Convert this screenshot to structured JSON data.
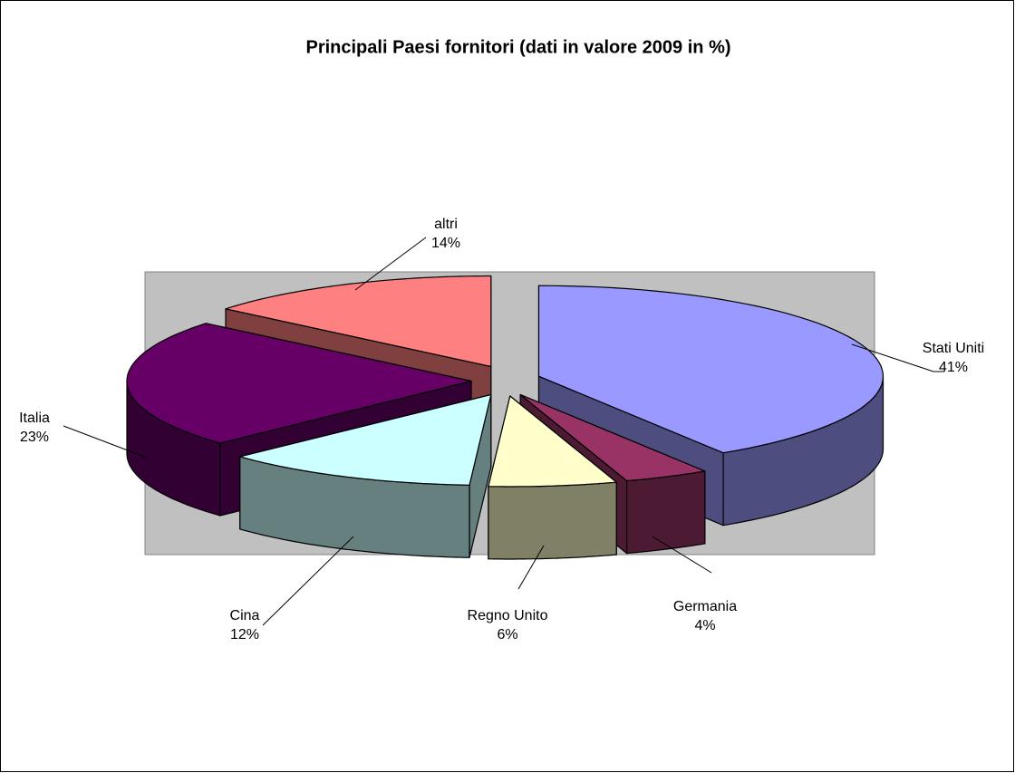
{
  "chart_data": {
    "type": "pie3d",
    "title": "Principali Paesi fornitori (dati in valore 2009 in %)",
    "categories": [
      "Stati Uniti",
      "Germania",
      "Regno Unito",
      "Cina",
      "Italia",
      "altri"
    ],
    "values": [
      41,
      4,
      6,
      12,
      23,
      14
    ],
    "value_labels": [
      "41%",
      "4%",
      "6%",
      "12%",
      "23%",
      "14%"
    ],
    "colors": [
      "#9999ff",
      "#993366",
      "#ffffcc",
      "#ccffff",
      "#660066",
      "#ff8080"
    ]
  }
}
